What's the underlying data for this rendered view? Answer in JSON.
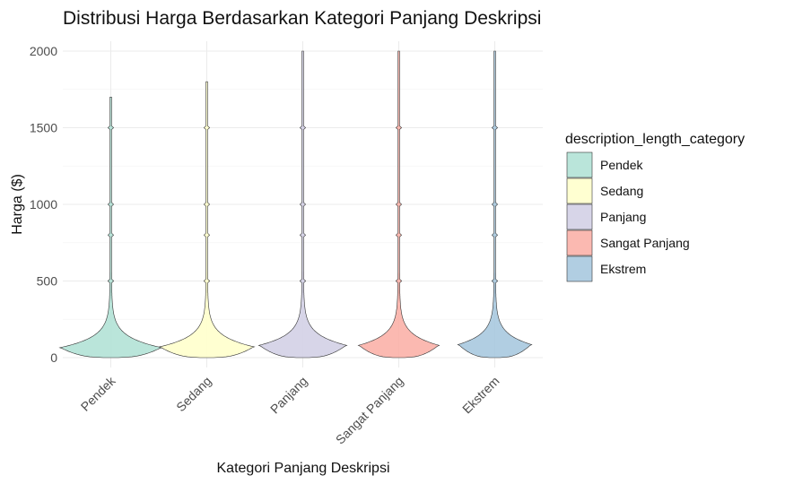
{
  "chart_data": {
    "type": "violin",
    "title": "Distribusi Harga Berdasarkan Kategori Panjang Deskripsi",
    "xlabel": "Kategori Panjang Deskripsi",
    "ylabel": "Harga ($)",
    "ylim": [
      0,
      2000
    ],
    "yticks": [
      "0",
      "500",
      "1000",
      "1500",
      "2000"
    ],
    "categories": [
      "Pendek",
      "Sedang",
      "Panjang",
      "Sangat Panjang",
      "Ekstrem"
    ],
    "series": [
      {
        "category": "Pendek",
        "color": "#b3e2d6",
        "min": 0,
        "max": 1700,
        "mode": 65
      },
      {
        "category": "Sedang",
        "color": "#ffffcc",
        "min": 0,
        "max": 1800,
        "mode": 70
      },
      {
        "category": "Panjang",
        "color": "#d3d0e6",
        "min": 0,
        "max": 2000,
        "mode": 80
      },
      {
        "category": "Sangat Panjang",
        "color": "#fbb1a8",
        "min": 0,
        "max": 2000,
        "mode": 80
      },
      {
        "category": "Ekstrem",
        "color": "#a9c9df",
        "min": 0,
        "max": 2000,
        "mode": 85
      }
    ],
    "legend": {
      "title": "description_length_category",
      "position": "right",
      "entries": [
        "Pendek",
        "Sedang",
        "Panjang",
        "Sangat Panjang",
        "Ekstrem"
      ]
    },
    "grid": true
  }
}
